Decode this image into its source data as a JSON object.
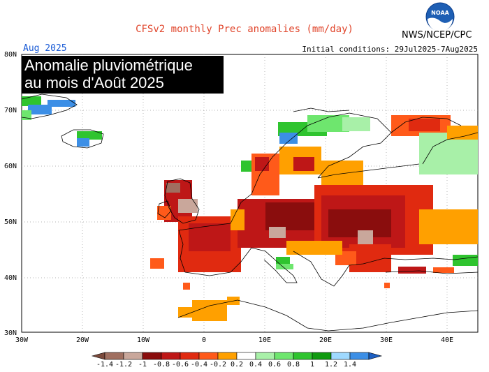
{
  "header": {
    "title": "CFSv2 monthly Prec anomalies (mm/day)",
    "agency": "NWS/NCEP/CPC",
    "logo_text": "NOAA",
    "month": "Aug 2025",
    "initial_conditions": "Initial conditions: 29Jul2025-7Aug2025"
  },
  "overlay": {
    "line1": "Anomalie pluviométrique",
    "line2": "au mois d'Août 2025"
  },
  "map": {
    "lon_labels": [
      "30W",
      "20W",
      "10W",
      "0",
      "10E",
      "20E",
      "30E",
      "40E"
    ],
    "lat_labels": [
      "80N",
      "70N",
      "60N",
      "50N",
      "40N",
      "30N"
    ]
  },
  "legend": {
    "labels": [
      "-1.4",
      "-1.2",
      "-1",
      "-0.8",
      "-0.6",
      "-0.4",
      "-0.2",
      "0.2",
      "0.4",
      "0.6",
      "0.8",
      "1",
      "1.2",
      "1.4"
    ],
    "colors": [
      "#7b4a3c",
      "#a06f60",
      "#c9a79b",
      "#8a0d0d",
      "#be1717",
      "#e02a10",
      "#ff5a1a",
      "#ffa000",
      "#ffffff",
      "#a8f0a8",
      "#6ee66e",
      "#2fc42f",
      "#0f9a0f",
      "#9fd9ff",
      "#3c8fe6",
      "#1c5fc2"
    ]
  },
  "colors": {
    "title": "#e0442a",
    "month": "#1a5bd6"
  }
}
